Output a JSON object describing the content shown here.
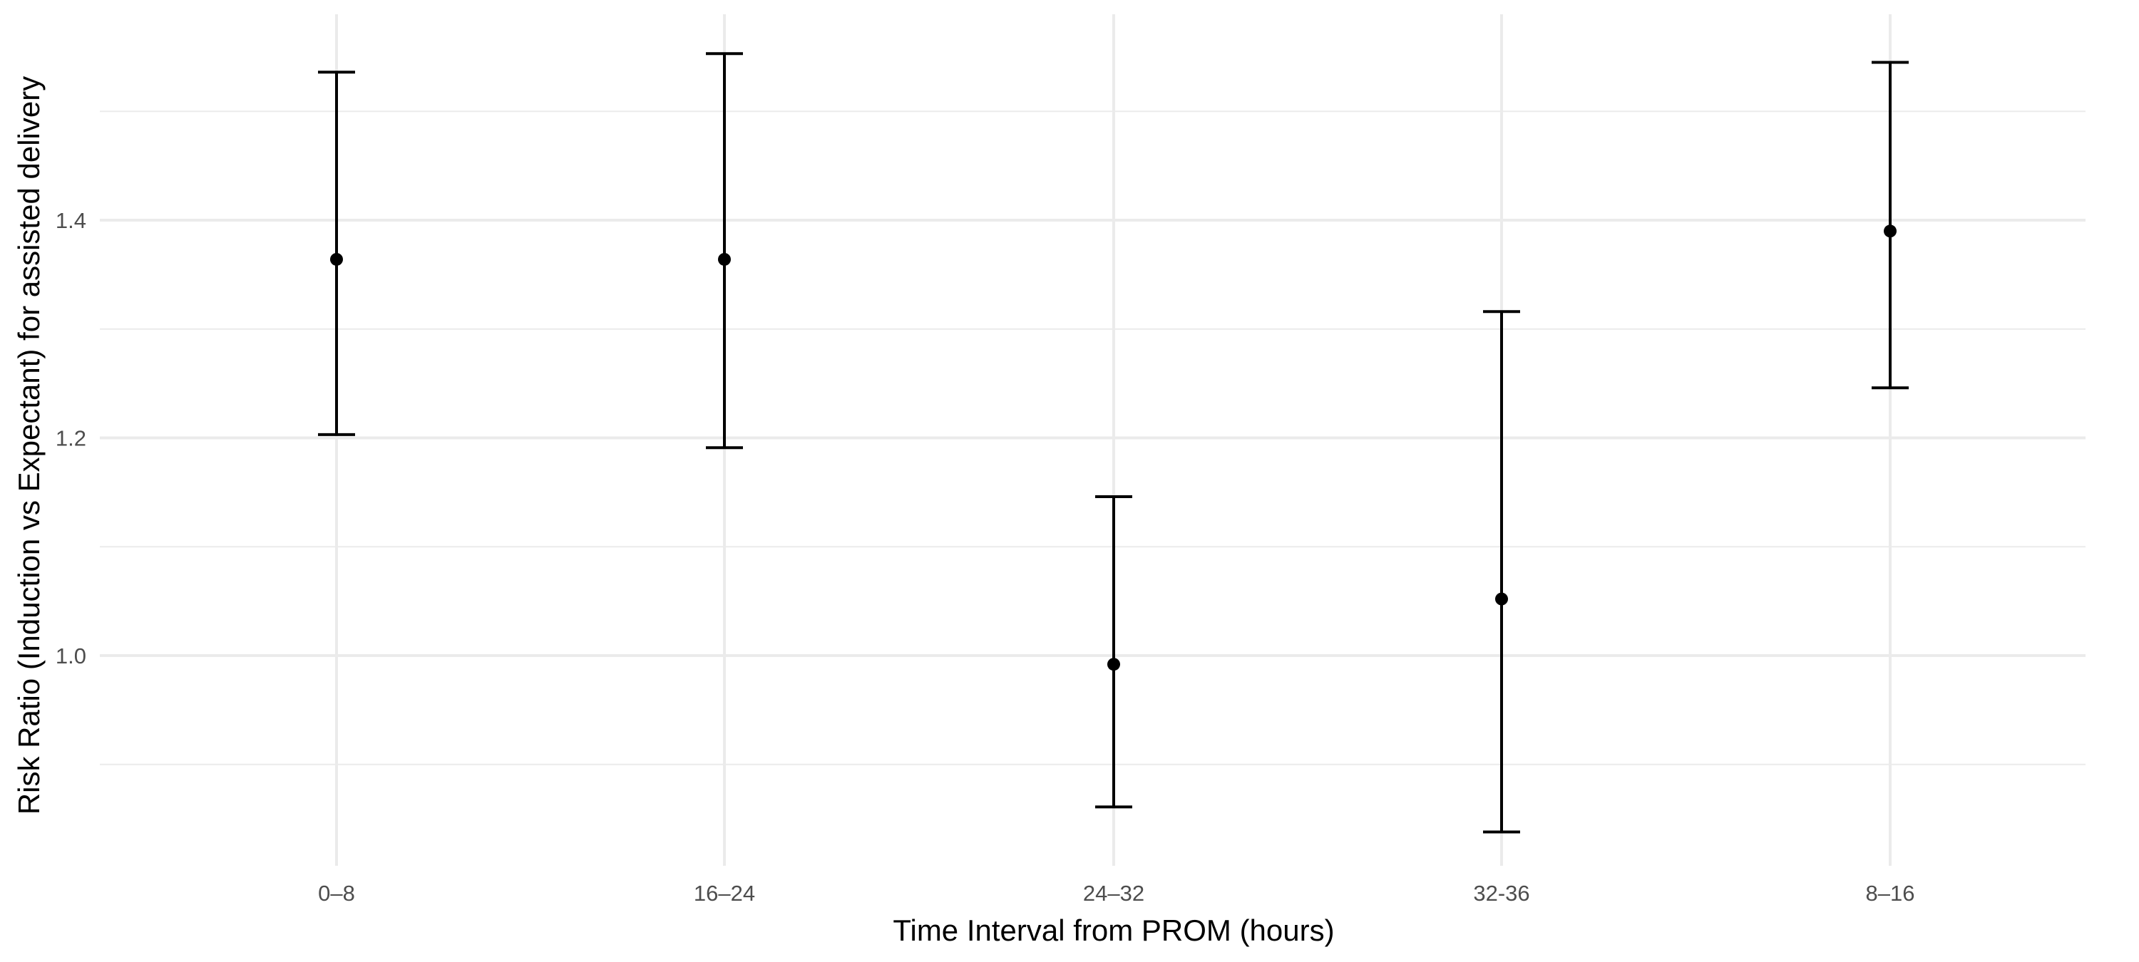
{
  "chart_data": {
    "type": "scatter",
    "subtype": "point-with-error-bars",
    "title": "",
    "xlabel": "Time Interval from PROM (hours)",
    "ylabel": "Risk Ratio (Induction vs Expectant) for assisted delivery",
    "categories": [
      "0–8",
      "16–24",
      "24–32",
      "32-36",
      "8–16"
    ],
    "values": [
      1.364,
      1.364,
      0.992,
      1.052,
      1.39
    ],
    "lower": [
      1.203,
      1.191,
      0.861,
      0.838,
      1.246
    ],
    "upper": [
      1.536,
      1.553,
      1.146,
      1.316,
      1.545
    ],
    "ylim": [
      0.8,
      1.6
    ],
    "yticks": [
      1.0,
      1.2,
      1.4
    ],
    "yticks_minor": [
      0.9,
      1.1,
      1.3,
      1.5
    ],
    "grid": true,
    "theme": "minimal",
    "point_color": "#000000",
    "grid_color": "#ebebeb"
  }
}
